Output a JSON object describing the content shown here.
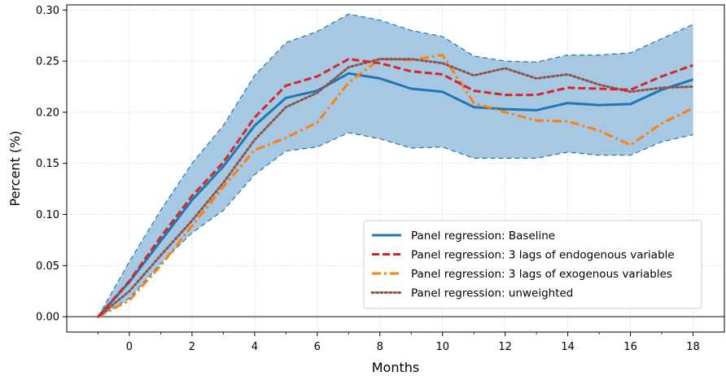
{
  "chart_data": {
    "type": "line",
    "xlabel": "Months",
    "ylabel": "Percent (%)",
    "xlim": [
      -2,
      19
    ],
    "ylim": [
      -0.015,
      0.305
    ],
    "x_ticks": [
      0,
      2,
      4,
      6,
      8,
      10,
      12,
      14,
      16,
      18
    ],
    "x_minor_ticks": [
      -1,
      1,
      3,
      5,
      7,
      9,
      11,
      13,
      15,
      17
    ],
    "y_ticks": [
      0.0,
      0.05,
      0.1,
      0.15,
      0.2,
      0.25,
      0.3
    ],
    "y_tick_labels": [
      "0.00",
      "0.05",
      "0.10",
      "0.15",
      "0.20",
      "0.25",
      "0.30"
    ],
    "grid": true,
    "zero_line": true,
    "legend_placement": "lower-right",
    "x": [
      -1,
      0,
      1,
      2,
      3,
      4,
      5,
      6,
      7,
      8,
      9,
      10,
      11,
      12,
      13,
      14,
      15,
      16,
      17,
      18
    ],
    "band": {
      "upper": [
        0,
        0.054,
        0.104,
        0.15,
        0.187,
        0.236,
        0.268,
        0.279,
        0.296,
        0.29,
        0.28,
        0.274,
        0.255,
        0.25,
        0.249,
        0.256,
        0.256,
        0.258,
        0.272,
        0.286
      ],
      "lower": [
        0,
        0.018,
        0.052,
        0.082,
        0.104,
        0.139,
        0.162,
        0.166,
        0.18,
        0.174,
        0.165,
        0.166,
        0.155,
        0.155,
        0.155,
        0.161,
        0.158,
        0.158,
        0.171,
        0.178
      ],
      "fill_color": "#a6c8e3",
      "edge_color": "#1f77b4"
    },
    "series": [
      {
        "name": "Panel regression: Baseline",
        "color": "#1f77b4",
        "style": "solid",
        "values": [
          0,
          0.034,
          0.074,
          0.114,
          0.147,
          0.187,
          0.214,
          0.221,
          0.238,
          0.233,
          0.223,
          0.22,
          0.205,
          0.203,
          0.202,
          0.209,
          0.207,
          0.208,
          0.222,
          0.232
        ]
      },
      {
        "name": "Panel regression: 3 lags of endogenous variable",
        "color": "#d62728",
        "style": "dashed",
        "values": [
          0,
          0.035,
          0.078,
          0.118,
          0.151,
          0.195,
          0.226,
          0.235,
          0.252,
          0.248,
          0.24,
          0.237,
          0.221,
          0.217,
          0.217,
          0.224,
          0.223,
          0.222,
          0.235,
          0.246
        ]
      },
      {
        "name": "Panel regression: 3 lags of exogenous variables",
        "color": "#ff7f0e",
        "style": "dashdot",
        "values": [
          0,
          0.016,
          0.05,
          0.089,
          0.127,
          0.163,
          0.175,
          0.19,
          0.229,
          0.252,
          0.251,
          0.256,
          0.209,
          0.2,
          0.192,
          0.191,
          0.182,
          0.168,
          0.189,
          0.204
        ]
      },
      {
        "name": "Panel regression: unweighted",
        "color": "#8c564b",
        "style": "dotted",
        "values": [
          0,
          0.025,
          0.06,
          0.094,
          0.131,
          0.173,
          0.205,
          0.219,
          0.244,
          0.252,
          0.252,
          0.248,
          0.236,
          0.243,
          0.233,
          0.237,
          0.227,
          0.22,
          0.224,
          0.225
        ]
      }
    ]
  }
}
